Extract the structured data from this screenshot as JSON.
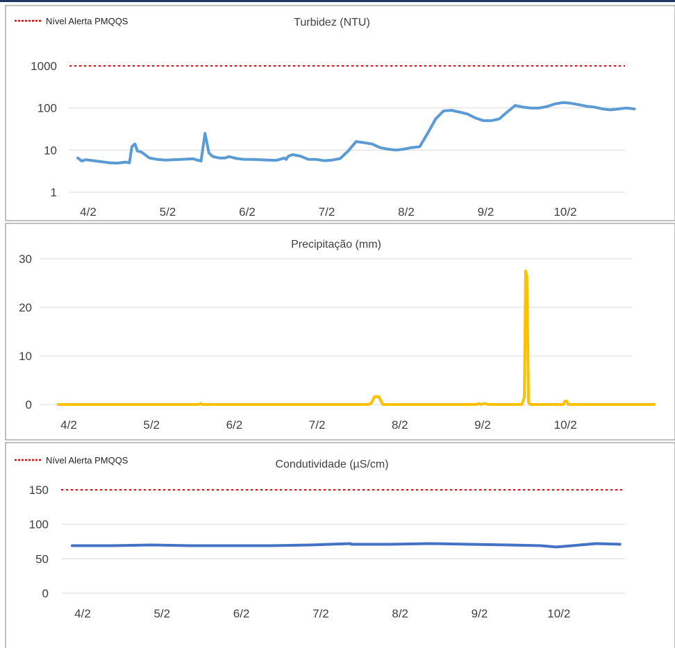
{
  "colors": {
    "turbidity_line": "#5b9bd5",
    "precip_line": "#ffc000",
    "conductivity_line": "#4472c4",
    "alert_line": "#e00000",
    "grid": "#d9d9d9",
    "frame": "#808080",
    "top_bar": "#1f3864"
  },
  "chart_data": [
    {
      "type": "line",
      "title": "Turbidez (NTU)",
      "legend": "Nível Alerta PMQQS",
      "legend_position": "top-left",
      "y_scale": "log",
      "ylim": [
        1,
        1000
      ],
      "y_ticks": [
        "1",
        "10",
        "100",
        "1000"
      ],
      "x_ticks": [
        "4/2",
        "5/2",
        "6/2",
        "7/2",
        "8/2",
        "9/2",
        "10/2"
      ],
      "alert_level": 1000,
      "grid": true,
      "series": [
        {
          "name": "",
          "x": [
            0,
            0.05,
            0.1,
            0.2,
            0.3,
            0.4,
            0.5,
            0.6,
            0.65,
            0.68,
            0.7,
            0.72,
            0.75,
            0.8,
            0.9,
            1.0,
            1.1,
            1.3,
            1.45,
            1.5,
            1.55,
            1.6,
            1.65,
            1.68,
            1.7,
            1.73,
            1.78,
            1.85,
            1.9,
            2.0,
            2.1,
            2.2,
            2.3,
            2.4,
            2.5,
            2.6,
            2.62,
            2.65,
            2.7,
            2.8,
            2.9,
            3.0,
            3.1,
            3.2,
            3.3,
            3.4,
            3.5,
            3.6,
            3.7,
            3.8,
            3.9,
            4.0,
            4.1,
            4.2,
            4.3,
            4.4,
            4.5,
            4.6,
            4.7,
            4.8,
            4.9,
            5.0,
            5.1,
            5.2,
            5.3,
            5.4,
            5.5,
            5.6,
            5.7,
            5.8,
            5.9,
            6.0,
            6.1,
            6.2,
            6.3,
            6.4,
            6.5,
            6.6,
            6.7,
            6.8,
            6.9,
            7.0
          ],
          "values": [
            6.5,
            5.5,
            5.9,
            5.6,
            5.3,
            5.0,
            4.9,
            5.2,
            5.0,
            12,
            13,
            14,
            9.5,
            9,
            6.5,
            6.0,
            5.8,
            6.0,
            6.2,
            5.8,
            5.5,
            25,
            8.5,
            7.5,
            7.0,
            6.8,
            6.5,
            6.5,
            7.0,
            6.3,
            6.0,
            6.0,
            5.9,
            5.8,
            5.7,
            6.5,
            6.0,
            7.2,
            7.8,
            7.2,
            6.0,
            6.0,
            5.6,
            5.8,
            6.3,
            9.5,
            16,
            15,
            14,
            11.5,
            10.5,
            10.0,
            10.5,
            11.5,
            12,
            25,
            55,
            85,
            88,
            80,
            72,
            58,
            50,
            50,
            55,
            80,
            115,
            105,
            100,
            100,
            108,
            125,
            135,
            130,
            120,
            110,
            105,
            95,
            90,
            95,
            100,
            95
          ]
        }
      ]
    },
    {
      "type": "line",
      "title": "Precipitação (mm)",
      "ylim": [
        0,
        30
      ],
      "y_ticks": [
        "0",
        "10",
        "20",
        "30"
      ],
      "x_ticks": [
        "4/2",
        "5/2",
        "6/2",
        "7/2",
        "8/2",
        "9/2",
        "10/2"
      ],
      "grid": true,
      "series": [
        {
          "name": "",
          "x": [
            0,
            1.7,
            1.72,
            1.74,
            3.75,
            3.78,
            3.82,
            3.87,
            3.92,
            4.0,
            5.05,
            5.08,
            5.1,
            5.15,
            5.2,
            5.6,
            5.63,
            5.645,
            5.66,
            5.68,
            5.7,
            6.1,
            6.12,
            6.14,
            6.16,
            7.2
          ],
          "values": [
            0,
            0,
            0.2,
            0,
            0,
            0.3,
            1.6,
            1.6,
            0,
            0,
            0,
            0.2,
            0,
            0.2,
            0,
            0,
            1.5,
            27.5,
            26.5,
            0.5,
            0,
            0,
            0.7,
            0.7,
            0,
            0
          ]
        }
      ]
    },
    {
      "type": "line",
      "title": "Condutividade (µS/cm)",
      "legend": "Nível Alerta PMQQS",
      "legend_position": "top-left",
      "ylim": [
        0,
        150
      ],
      "y_ticks": [
        "0",
        "50",
        "100",
        "150"
      ],
      "x_ticks": [
        "4/2",
        "5/2",
        "6/2",
        "7/2",
        "8/2",
        "9/2",
        "10/2"
      ],
      "alert_level": 150,
      "grid": true,
      "series": [
        {
          "name": "",
          "x": [
            0,
            0.5,
            1.0,
            1.5,
            2.0,
            2.5,
            3.0,
            3.5,
            3.52,
            4.0,
            4.5,
            5.0,
            5.5,
            5.9,
            6.1,
            6.3,
            6.6,
            6.9
          ],
          "values": [
            69,
            69,
            70,
            69,
            69,
            69,
            70,
            72,
            71,
            71,
            72,
            71,
            70,
            69,
            67,
            69,
            72,
            71
          ]
        }
      ]
    }
  ]
}
